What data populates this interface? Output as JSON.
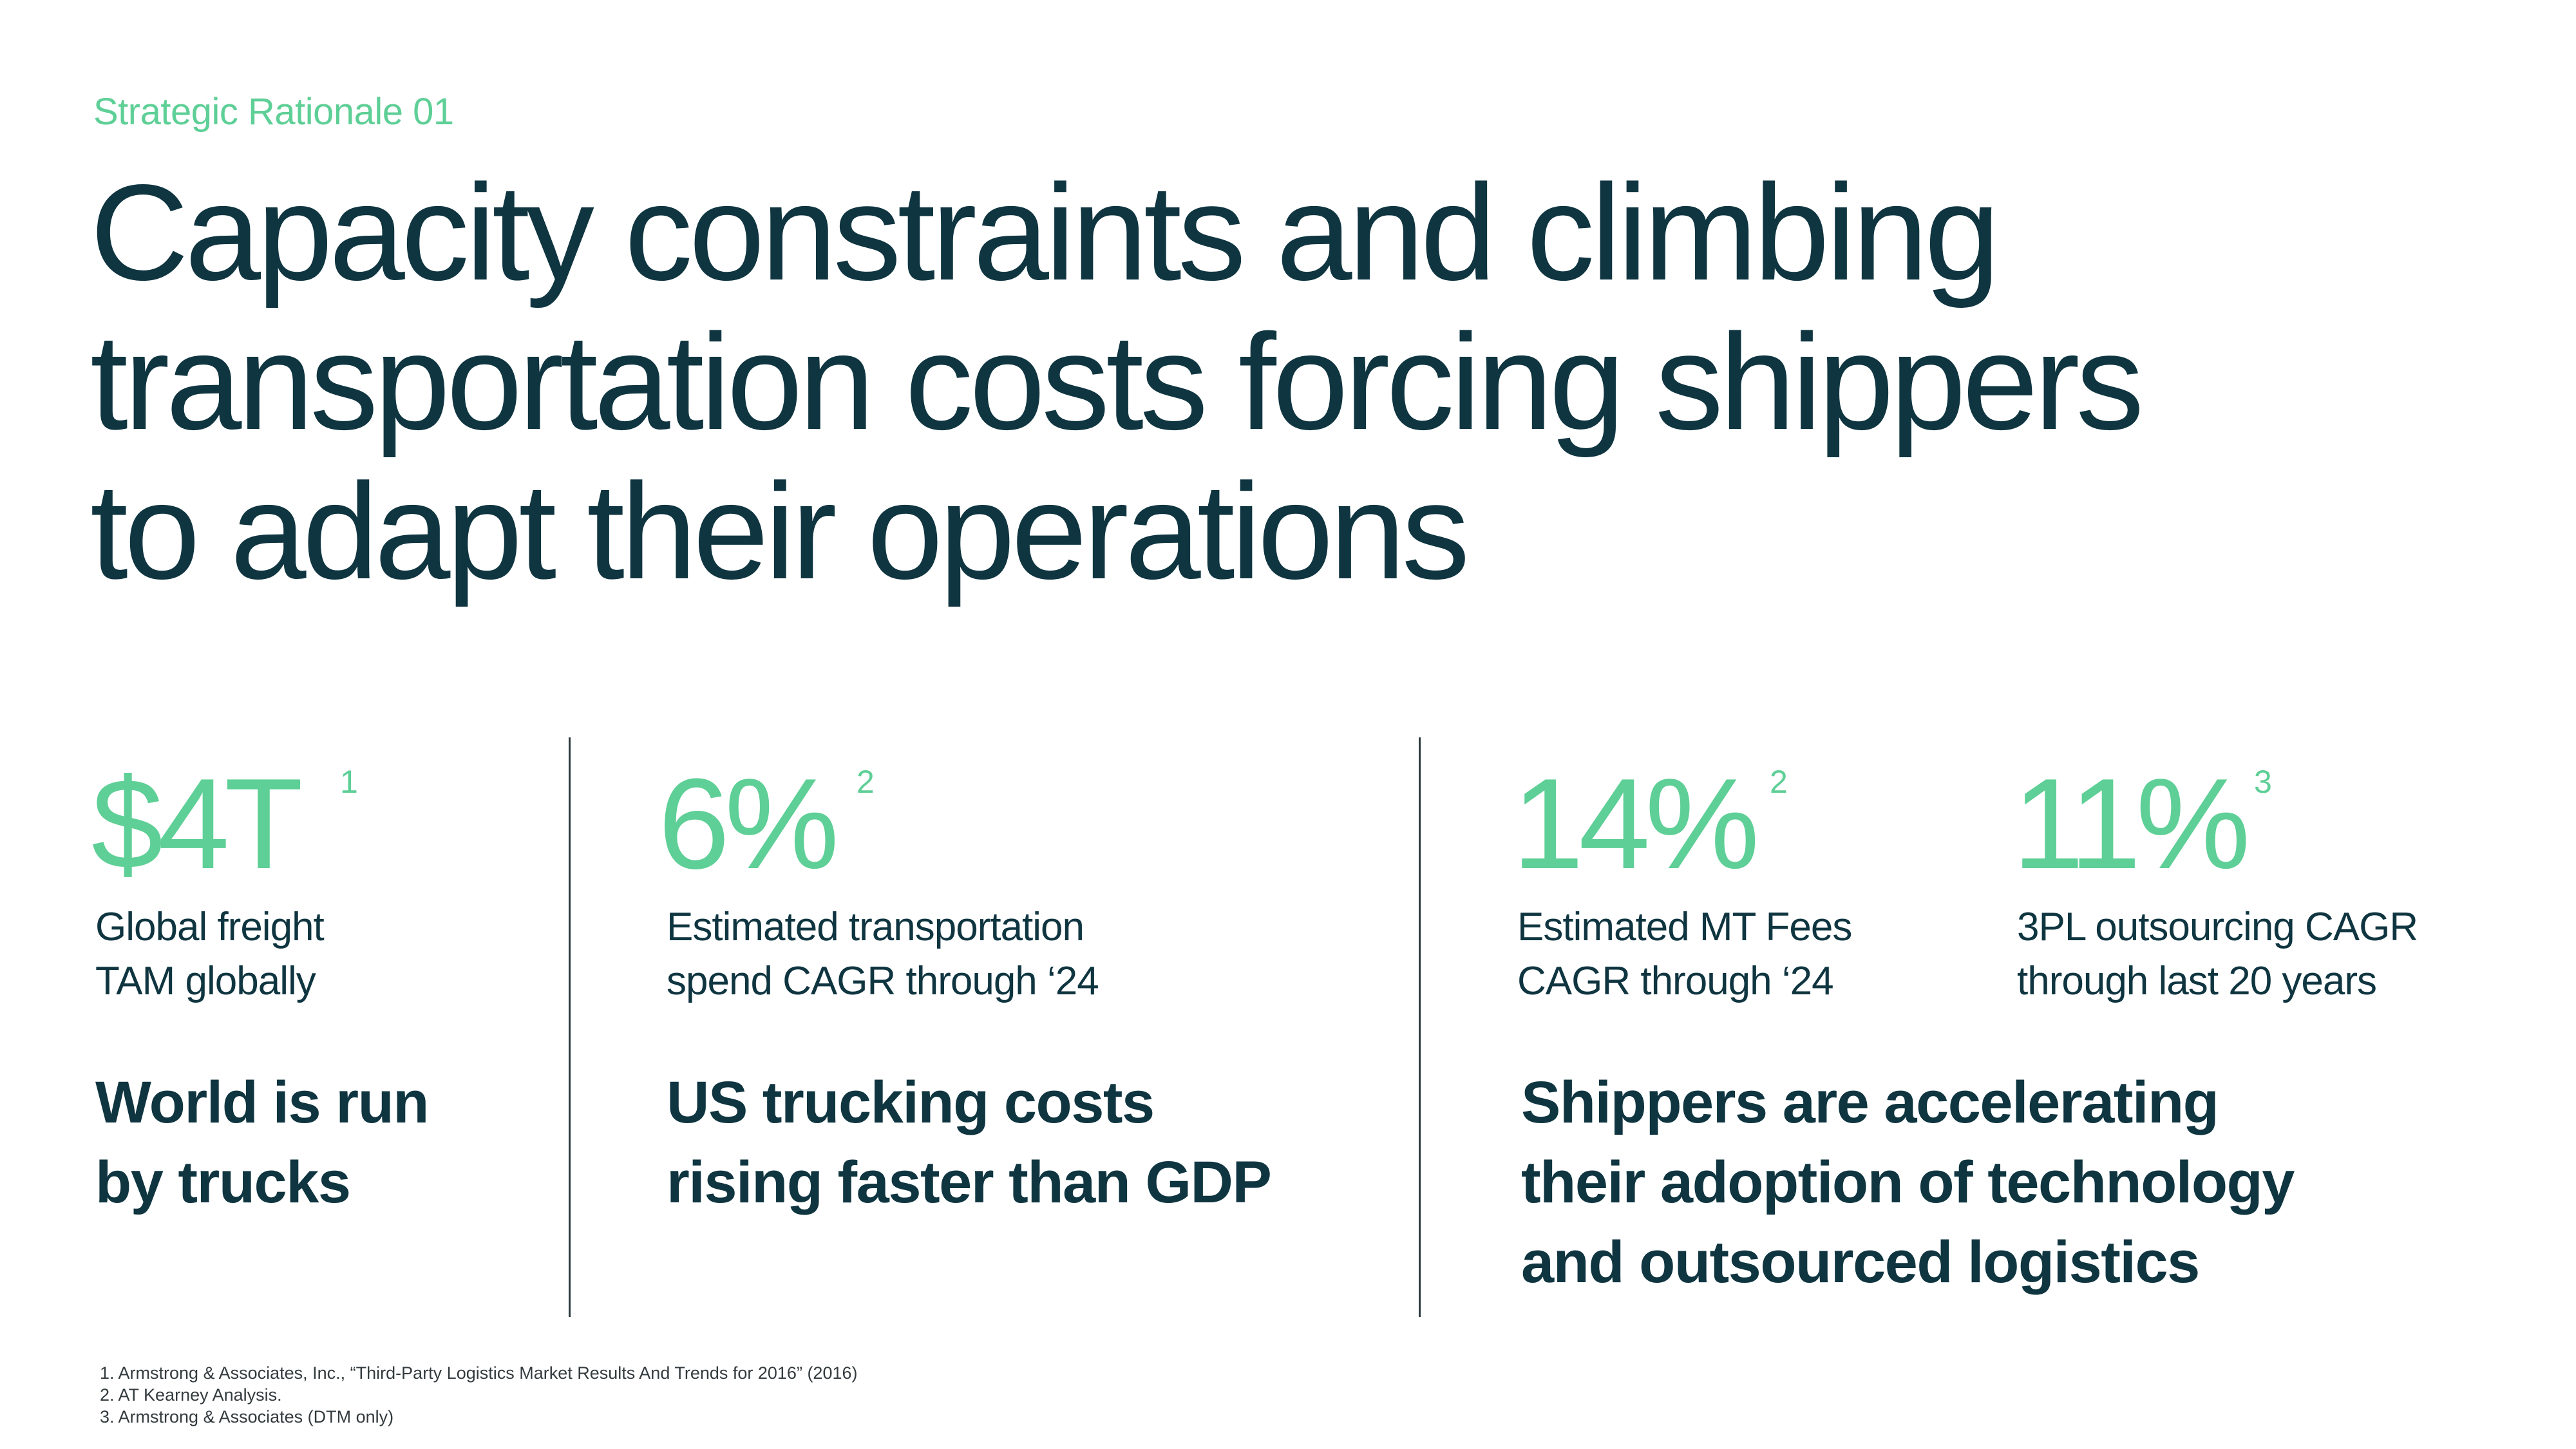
{
  "eyebrow": "Strategic Rationale 01",
  "headline": {
    "line1": "Capacity constraints and climbing",
    "line2": "transportation costs forcing shippers",
    "line3": "to adapt their operations"
  },
  "stats": [
    {
      "value": "$4T",
      "sup": "1",
      "caption_line1": "Global freight",
      "caption_line2": "TAM globally"
    },
    {
      "value": "6%",
      "sup": "2",
      "caption_line1": "Estimated transportation",
      "caption_line2": "spend CAGR through ‘24"
    },
    {
      "value": "14%",
      "sup": "2",
      "caption_line1": "Estimated MT Fees",
      "caption_line2": "CAGR through ‘24"
    },
    {
      "value": "11%",
      "sup": "3",
      "caption_line1": "3PL outsourcing CAGR",
      "caption_line2": "through last 20 years"
    }
  ],
  "takeaways": [
    {
      "line1": "World is run",
      "line2": "by trucks"
    },
    {
      "line1": "US trucking costs",
      "line2": "rising faster than GDP"
    },
    {
      "line1": "Shippers are accelerating",
      "line2": "their adoption of technology",
      "line3": "and outsourced logistics"
    }
  ],
  "footnotes": [
    "1. Armstrong & Associates, Inc., “Third-Party Logistics Market Results And Trends for 2016” (2016)",
    "2. AT Kearney Analysis.",
    "3. Armstrong & Associates (DTM only)"
  ],
  "colors": {
    "accent": "#5ecf96",
    "text": "#0f3540",
    "divider": "#2b3a3f",
    "background": "#ffffff"
  }
}
